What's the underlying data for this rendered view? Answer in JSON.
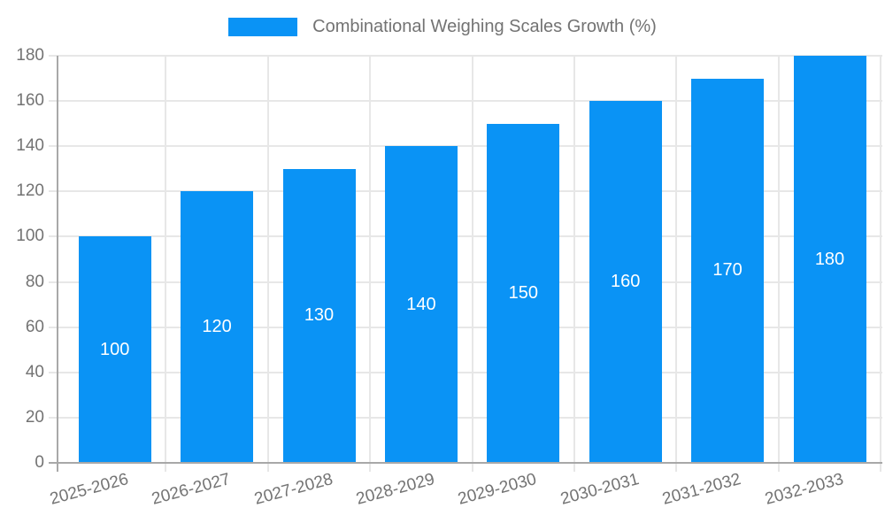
{
  "chart_data": {
    "type": "bar",
    "title": "",
    "legend": "Combinational Weighing Scales Growth (%)",
    "legend_position": "top-center",
    "categories": [
      "2025-2026",
      "2026-2027",
      "2027-2028",
      "2028-2029",
      "2029-2030",
      "2030-2031",
      "2031-2032",
      "2032-2033"
    ],
    "values": [
      100,
      120,
      130,
      140,
      150,
      160,
      170,
      180
    ],
    "value_labels": [
      "100",
      "120",
      "130",
      "140",
      "150",
      "160",
      "170",
      "180"
    ],
    "xlabel": "",
    "ylabel": "",
    "ylim": [
      0,
      180
    ],
    "yticks": [
      0,
      20,
      40,
      60,
      80,
      100,
      120,
      140,
      160,
      180
    ],
    "grid": true,
    "xtick_rotation_deg": -15,
    "colors": {
      "bar": "#0a93f5",
      "value_label": "#ffffff",
      "grid": "#e7e7e7",
      "axis": "#a8a8a8",
      "text": "#737373",
      "background": "#ffffff"
    }
  }
}
